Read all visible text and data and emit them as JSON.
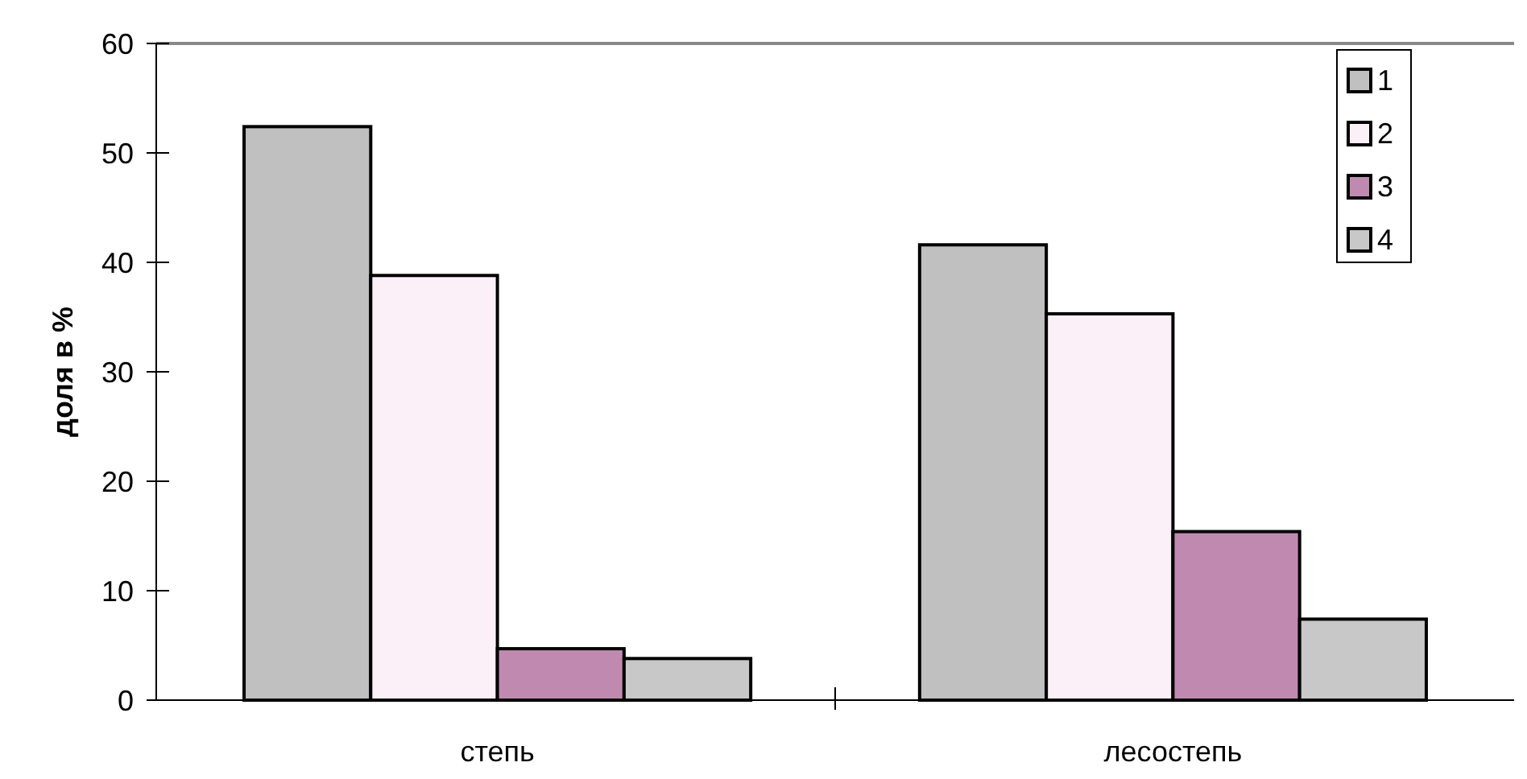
{
  "chart_data": {
    "type": "bar",
    "ylabel": "доля в %",
    "categories": [
      "степь",
      "лесостепь"
    ],
    "series": [
      {
        "name": "1",
        "color": "#c0c0c0",
        "values": [
          52.4,
          41.6
        ]
      },
      {
        "name": "2",
        "color": "#fbf0f8",
        "values": [
          38.8,
          35.3
        ]
      },
      {
        "name": "3",
        "color": "#c08ab0",
        "values": [
          4.7,
          15.4
        ]
      },
      {
        "name": "4",
        "color": "#c8c8c8",
        "values": [
          3.8,
          7.4
        ]
      }
    ],
    "ylim": [
      0,
      60
    ],
    "yticks": [
      0,
      10,
      20,
      30,
      40,
      50,
      60
    ],
    "grid": false,
    "legend": "top right"
  }
}
